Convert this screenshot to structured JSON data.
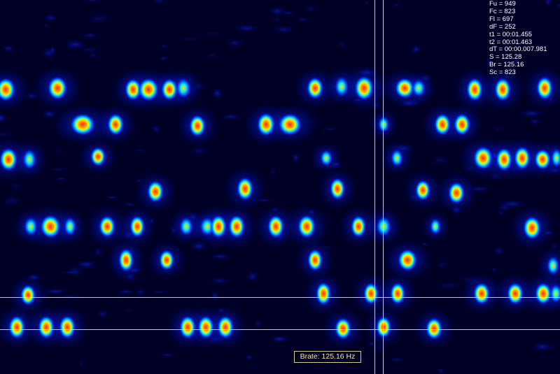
{
  "readout": [
    {
      "label": "Fu",
      "value": "949"
    },
    {
      "label": "Fc",
      "value": "823"
    },
    {
      "label": "Fl",
      "value": "697"
    },
    {
      "label": "dF",
      "value": "252"
    },
    {
      "label": "t1",
      "value": "00:01.455"
    },
    {
      "label": "t2",
      "value": "00:01.463"
    },
    {
      "label": "dT",
      "value": "00:00.007.981"
    },
    {
      "label": "S",
      "value": "125.28"
    },
    {
      "label": "Br",
      "value": "125.16"
    },
    {
      "label": "Sc",
      "value": "823"
    }
  ],
  "brate": {
    "label": "Brate: 125.16 Hz"
  },
  "colors": {
    "background": "#000026",
    "cursor": "#e6e6e6",
    "brate_border": "#d8c88a",
    "brate_text": "#f2e6b8"
  }
}
